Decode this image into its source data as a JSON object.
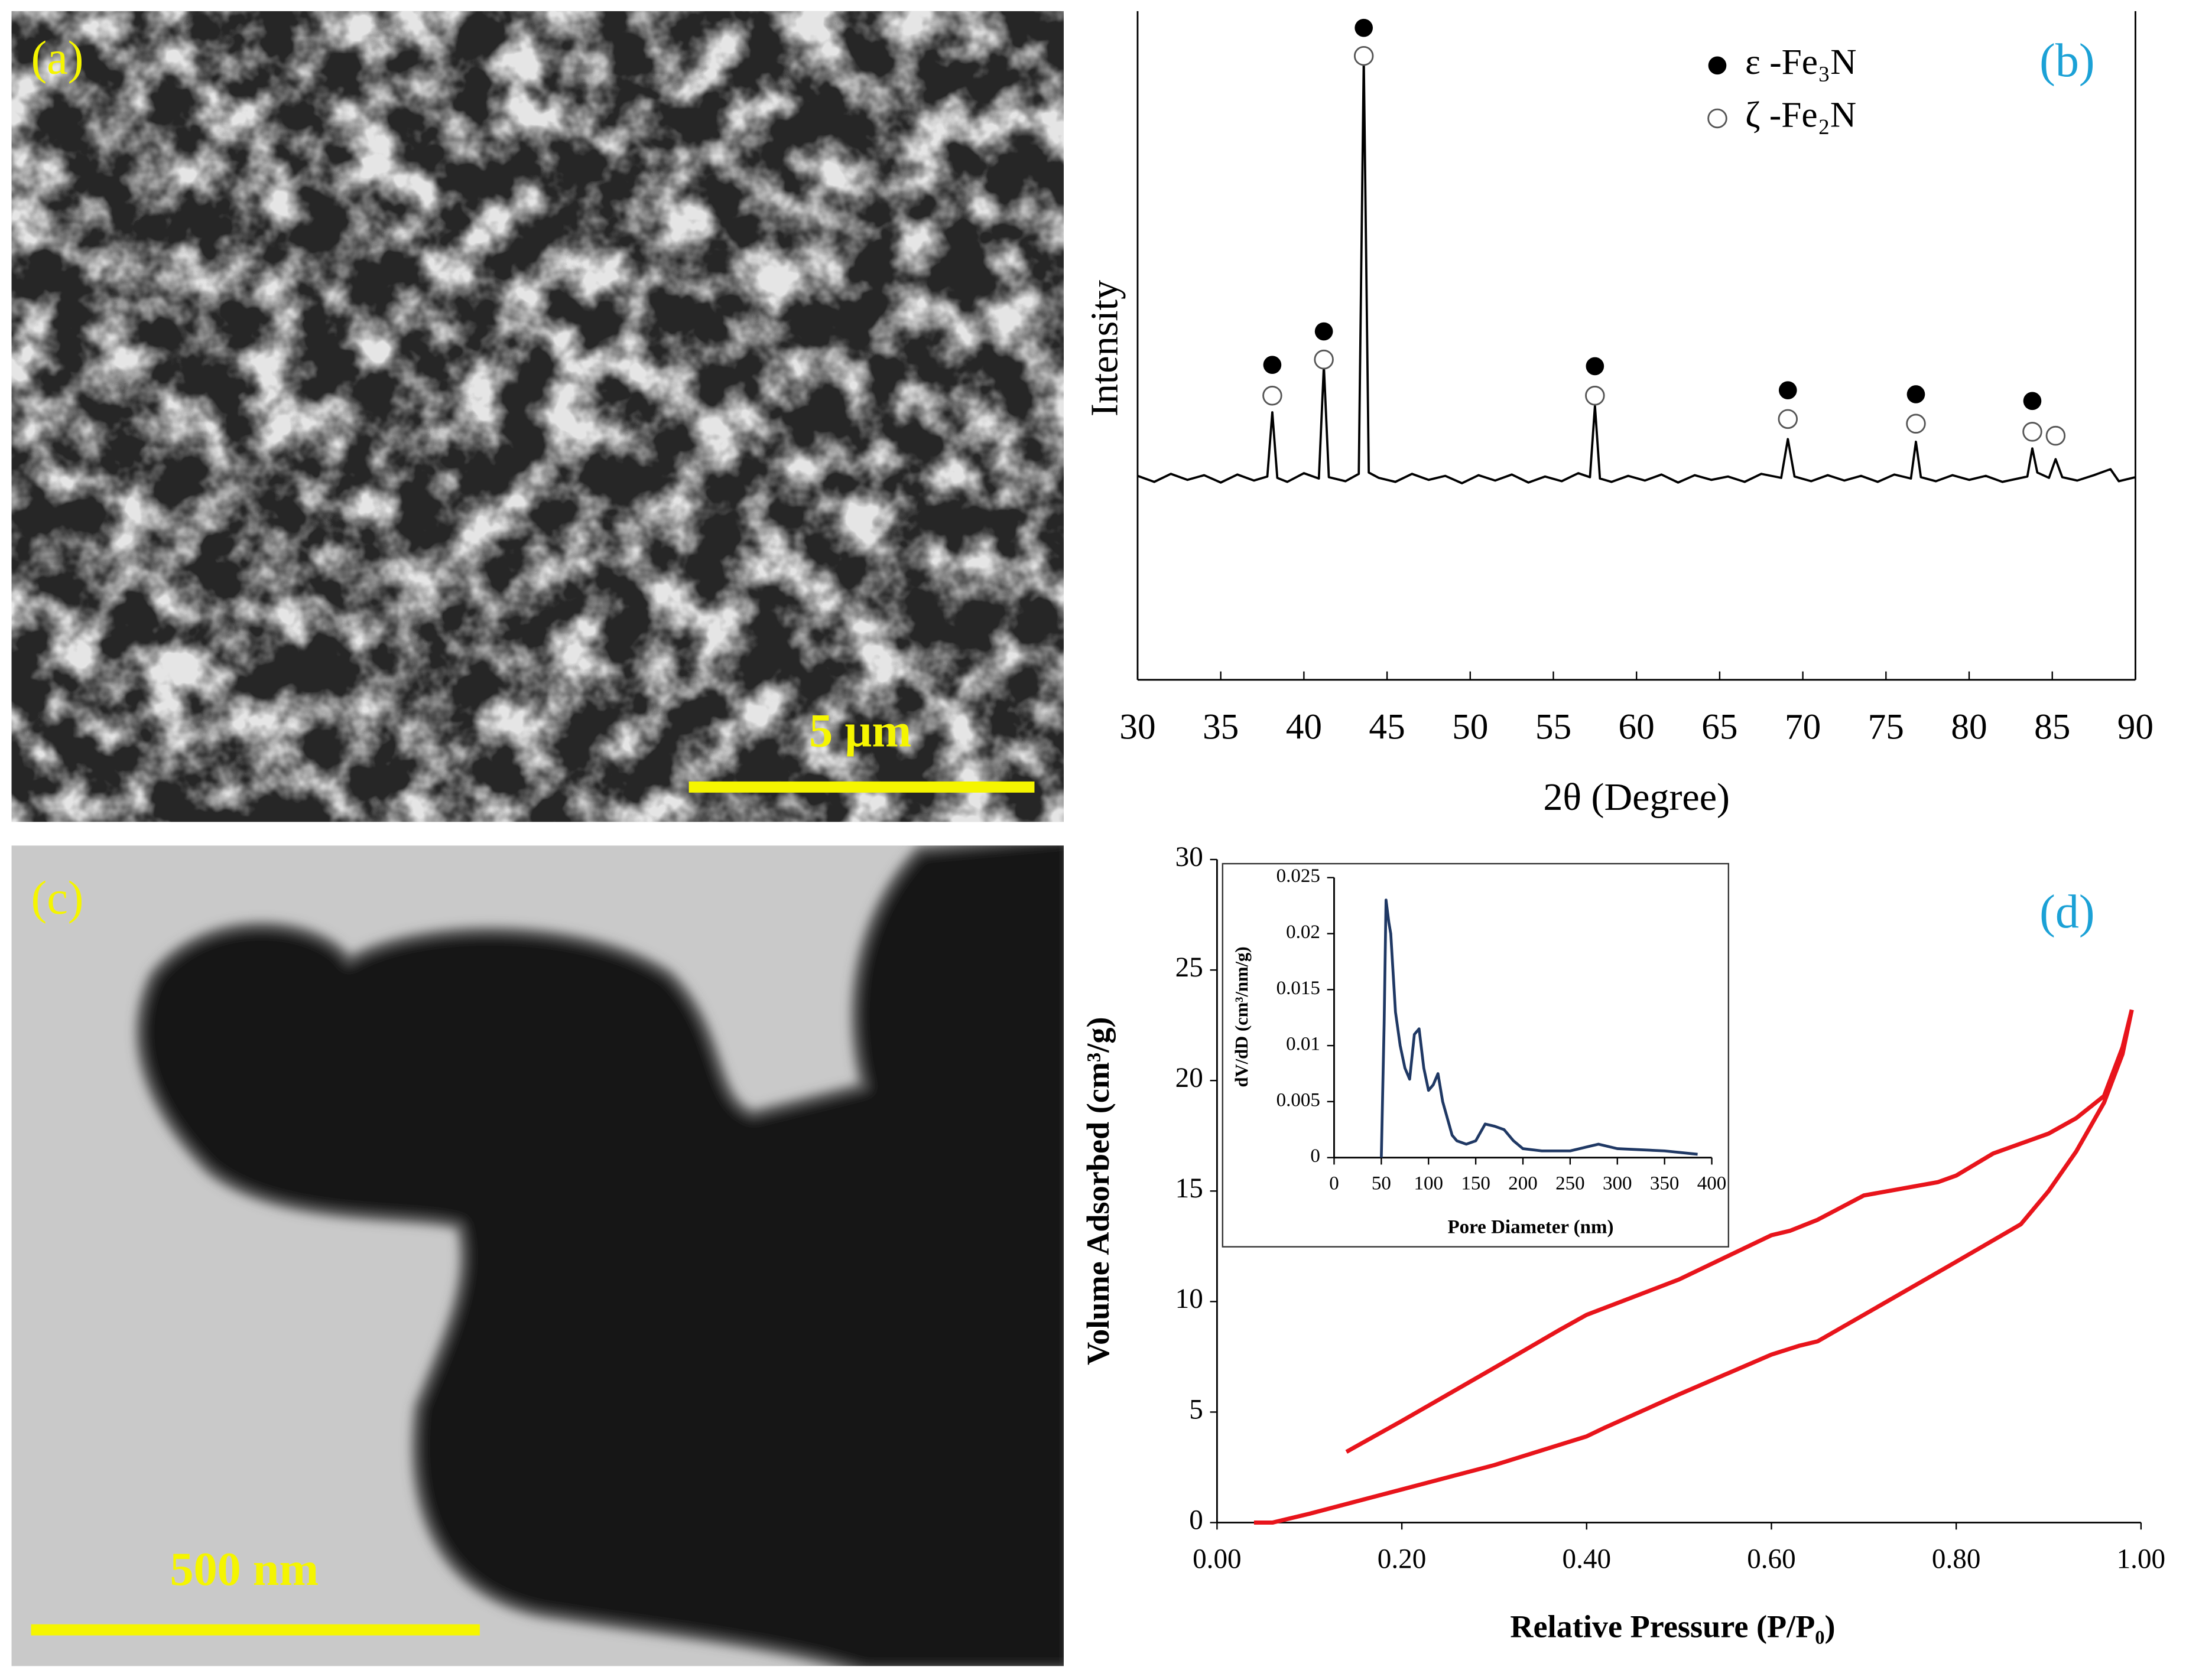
{
  "images": [
    {
      "label": "(a)",
      "scale_bar": "5 µm"
    },
    {
      "label": "(c)",
      "scale_bar": "500 nm"
    }
  ],
  "chart_data": [
    {
      "type": "line",
      "panel_label": "(b)",
      "y_label": "Intensity",
      "x_label": "2θ (Degree)",
      "xlim": [
        30,
        90
      ],
      "xticks": [
        30,
        35,
        40,
        45,
        50,
        55,
        60,
        65,
        70,
        75,
        80,
        85,
        90
      ],
      "ylim": [
        0,
        100
      ],
      "series": [
        {
          "color": "#000000",
          "x": [
            30,
            31,
            32,
            33,
            34,
            35,
            36,
            37,
            37.8,
            38.1,
            38.4,
            39,
            40,
            40.9,
            41.2,
            41.5,
            42.5,
            43.3,
            43.6,
            43.9,
            44.5,
            45.5,
            46.5,
            47.5,
            48.5,
            49.5,
            50.5,
            51.5,
            52.5,
            53.5,
            54.5,
            55.5,
            56.5,
            57.2,
            57.5,
            57.8,
            58.5,
            59.5,
            60.5,
            61.5,
            62.5,
            63.5,
            64.5,
            65.5,
            66.5,
            67.5,
            68.7,
            69.1,
            69.5,
            70.5,
            71.5,
            72.5,
            73.5,
            74.5,
            75.5,
            76.5,
            76.8,
            77.1,
            78,
            79,
            80,
            81,
            82,
            83.5,
            83.8,
            84.1,
            84.8,
            85.2,
            85.6,
            86.5,
            87.5,
            88.5,
            89,
            90
          ],
          "values": [
            30.5,
            29.6,
            30.8,
            29.9,
            30.6,
            29.5,
            30.7,
            29.8,
            30.4,
            40,
            30.2,
            29.6,
            30.9,
            30.1,
            47,
            30.3,
            29.7,
            30.8,
            93,
            31,
            30.2,
            29.6,
            30.8,
            29.9,
            30.5,
            29.4,
            30.6,
            29.8,
            30.7,
            29.5,
            30.4,
            29.7,
            30.9,
            30.3,
            41,
            30.1,
            29.6,
            30.5,
            29.8,
            30.7,
            29.5,
            30.6,
            29.9,
            30.4,
            29.6,
            30.8,
            30.2,
            36,
            30.4,
            29.7,
            30.6,
            29.8,
            30.5,
            29.6,
            30.7,
            30.1,
            35.6,
            30.3,
            29.7,
            30.6,
            29.9,
            30.5,
            29.6,
            30.4,
            34.6,
            31,
            30.2,
            33,
            30.3,
            29.8,
            30.6,
            31.5,
            29.7,
            30.3
          ]
        }
      ],
      "markers": [
        {
          "name": "ε -Fe₃N",
          "style": "filled",
          "x": [
            38.1,
            41.2,
            43.6,
            57.5,
            69.1,
            76.8,
            83.8
          ],
          "values": [
            47.1,
            52.1,
            97.5,
            46.9,
            43.3,
            42.7,
            41.7
          ]
        },
        {
          "name": "ζ -Fe₂N",
          "style": "open",
          "x": [
            38.1,
            41.2,
            43.6,
            57.5,
            69.1,
            76.8,
            83.8,
            85.2
          ],
          "values": [
            42.5,
            47.9,
            93.3,
            42.5,
            39.0,
            38.3,
            37.1,
            36.5
          ]
        }
      ]
    },
    {
      "type": "line",
      "panel_label": "(d)",
      "y_label": "Volume Adsorbed (cm³/g)",
      "x_label": "Relative Pressure (P/P₀)",
      "xlim": [
        0,
        1
      ],
      "xticks": [
        {
          "value": 0,
          "label": "0.00"
        },
        {
          "value": 0.2,
          "label": "0.20"
        },
        {
          "value": 0.4,
          "label": "0.40"
        },
        {
          "value": 0.6,
          "label": "0.60"
        },
        {
          "value": 0.8,
          "label": "0.80"
        },
        {
          "value": 1,
          "label": "1.00"
        }
      ],
      "ylim": [
        0,
        30
      ],
      "yticks": [
        0,
        5,
        10,
        15,
        20,
        25,
        30
      ],
      "series": [
        {
          "color": "#e8141b",
          "x": [
            0.04,
            0.06,
            0.1,
            0.2,
            0.3,
            0.4,
            0.42,
            0.5,
            0.6,
            0.63,
            0.65,
            0.7,
            0.8,
            0.87,
            0.9,
            0.93,
            0.96,
            0.98,
            0.99
          ],
          "values": [
            0,
            0,
            0.4,
            1.5,
            2.6,
            3.9,
            4.3,
            5.8,
            7.6,
            8.0,
            8.2,
            9.4,
            11.8,
            13.5,
            15.0,
            16.8,
            19.0,
            21.2,
            23.2
          ]
        },
        {
          "color": "#e8141b",
          "x": [
            0.99,
            0.98,
            0.96,
            0.93,
            0.9,
            0.86,
            0.84,
            0.8,
            0.78,
            0.7,
            0.65,
            0.62,
            0.6,
            0.5,
            0.4,
            0.37,
            0.3,
            0.25,
            0.2,
            0.14
          ],
          "values": [
            23.2,
            21.5,
            19.3,
            18.3,
            17.6,
            17.0,
            16.7,
            15.7,
            15.4,
            14.8,
            13.7,
            13.2,
            13.0,
            11.0,
            9.4,
            8.7,
            7.0,
            5.8,
            4.6,
            3.2
          ]
        }
      ]
    },
    {
      "type": "line",
      "y_label": "dV/dD (cm³/nm/g)",
      "x_label": "Pore Diameter (nm)",
      "xlim": [
        0,
        400
      ],
      "xticks": [
        0,
        50,
        100,
        150,
        200,
        250,
        300,
        350,
        400
      ],
      "ylim": [
        0,
        0.025
      ],
      "yticks": [
        0,
        0.005,
        0.01,
        0.015,
        0.02,
        0.025
      ],
      "series": [
        {
          "color": "#1f3864",
          "x": [
            50,
            53,
            55,
            58,
            60,
            65,
            70,
            75,
            80,
            85,
            90,
            95,
            100,
            105,
            110,
            115,
            120,
            125,
            130,
            140,
            150,
            160,
            170,
            180,
            190,
            200,
            220,
            250,
            270,
            280,
            300,
            350,
            385
          ],
          "values": [
            0,
            0.012,
            0.023,
            0.021,
            0.02,
            0.013,
            0.01,
            0.008,
            0.007,
            0.011,
            0.0115,
            0.008,
            0.006,
            0.0065,
            0.0075,
            0.005,
            0.0035,
            0.002,
            0.0015,
            0.0012,
            0.0015,
            0.003,
            0.0028,
            0.0025,
            0.0015,
            0.0008,
            0.0006,
            0.0006,
            0.001,
            0.0012,
            0.0008,
            0.0006,
            0.0003
          ]
        }
      ]
    }
  ]
}
